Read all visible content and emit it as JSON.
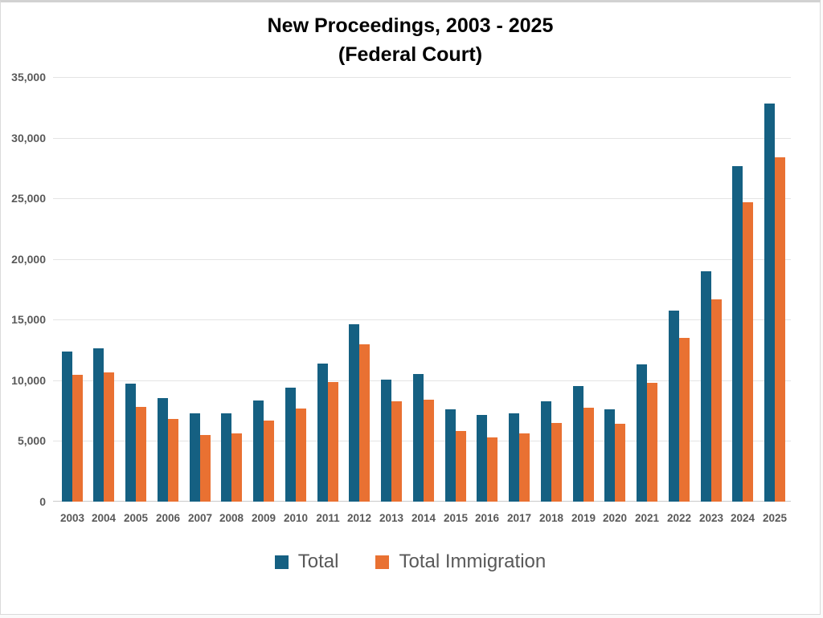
{
  "title": {
    "line1": "New Proceedings, 2003 - 2025",
    "line2": "(Federal Court)"
  },
  "colors": {
    "total": "#156082",
    "total_immigration": "#E97132",
    "gridline": "#e4e4e4",
    "axis_line": "#c9c9c9",
    "axis_text": "#595959",
    "title_text": "#000000"
  },
  "chart_data": {
    "type": "bar",
    "title": "New Proceedings, 2003 - 2025 (Federal Court)",
    "xlabel": "",
    "ylabel": "",
    "ylim": [
      0,
      35000
    ],
    "ytick_step": 5000,
    "ytick_labels": [
      "0",
      "5,000",
      "10,000",
      "15,000",
      "20,000",
      "25,000",
      "30,000",
      "35,000"
    ],
    "grid": true,
    "legend_position": "bottom",
    "categories": [
      "2003",
      "2004",
      "2005",
      "2006",
      "2007",
      "2008",
      "2009",
      "2010",
      "2011",
      "2012",
      "2013",
      "2014",
      "2015",
      "2016",
      "2017",
      "2018",
      "2019",
      "2020",
      "2021",
      "2022",
      "2023",
      "2024",
      "2025"
    ],
    "series": [
      {
        "name": "Total",
        "color": "#156082",
        "values": [
          12400,
          12650,
          9700,
          8550,
          7250,
          7300,
          8350,
          9400,
          11350,
          14650,
          10050,
          10550,
          7600,
          7150,
          7300,
          8300,
          9500,
          7600,
          11300,
          15750,
          19000,
          27650,
          32800
        ]
      },
      {
        "name": "Total Immigration",
        "color": "#E97132",
        "values": [
          10450,
          10650,
          7800,
          6800,
          5500,
          5650,
          6700,
          7700,
          9850,
          13000,
          8300,
          8400,
          5800,
          5300,
          5600,
          6500,
          7750,
          6400,
          9800,
          13500,
          16700,
          24650,
          28400
        ]
      }
    ]
  }
}
